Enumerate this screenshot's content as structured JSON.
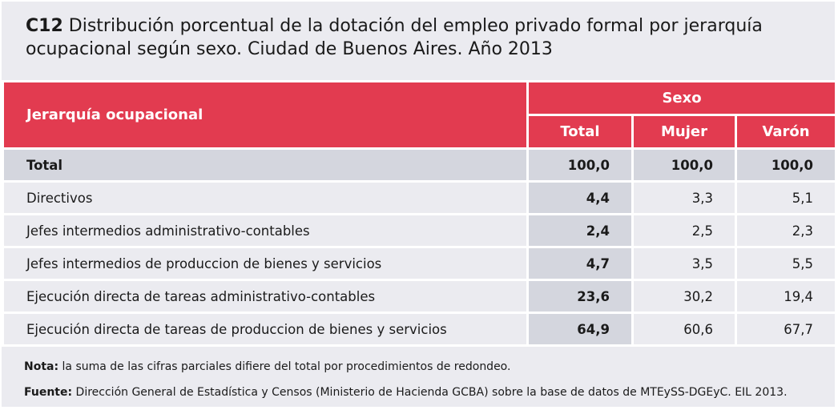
{
  "title": {
    "code": "C12",
    "text": "Distribución porcentual de la dotación del empleo privado formal por jerarquía ocupacional según sexo. Ciudad de Buenos Aires. Año 2013"
  },
  "colors": {
    "header": "#e23b50",
    "shaded": "#d4d6de",
    "background": "#ebebf0"
  },
  "chart_data": {
    "type": "table",
    "row_header": "Jerarquía ocupacional",
    "group_header": "Sexo",
    "columns": [
      "Total",
      "Mujer",
      "Varón"
    ],
    "rows": [
      {
        "label": "Total",
        "values": [
          "100,0",
          "100,0",
          "100,0"
        ]
      },
      {
        "label": "Directivos",
        "values": [
          "4,4",
          "3,3",
          "5,1"
        ]
      },
      {
        "label": "Jefes intermedios administrativo-contables",
        "values": [
          "2,4",
          "2,5",
          "2,3"
        ]
      },
      {
        "label": "Jefes intermedios de produccion de bienes y servicios",
        "values": [
          "4,7",
          "3,5",
          "5,5"
        ]
      },
      {
        "label": "Ejecución directa de tareas administrativo-contables",
        "values": [
          "23,6",
          "30,2",
          "19,4"
        ]
      },
      {
        "label": "Ejecución directa de tareas de produccion de bienes y servicios",
        "values": [
          "64,9",
          "60,6",
          "67,7"
        ]
      }
    ]
  },
  "notes": {
    "nota_label": "Nota:",
    "nota_text": "la suma de las cifras parciales difiere del total por procedimientos de redondeo.",
    "fuente_label": "Fuente:",
    "fuente_text": "Dirección General de Estadística y Censos (Ministerio de Hacienda GCBA) sobre la base de datos de MTEySS-DGEyC. EIL 2013."
  }
}
